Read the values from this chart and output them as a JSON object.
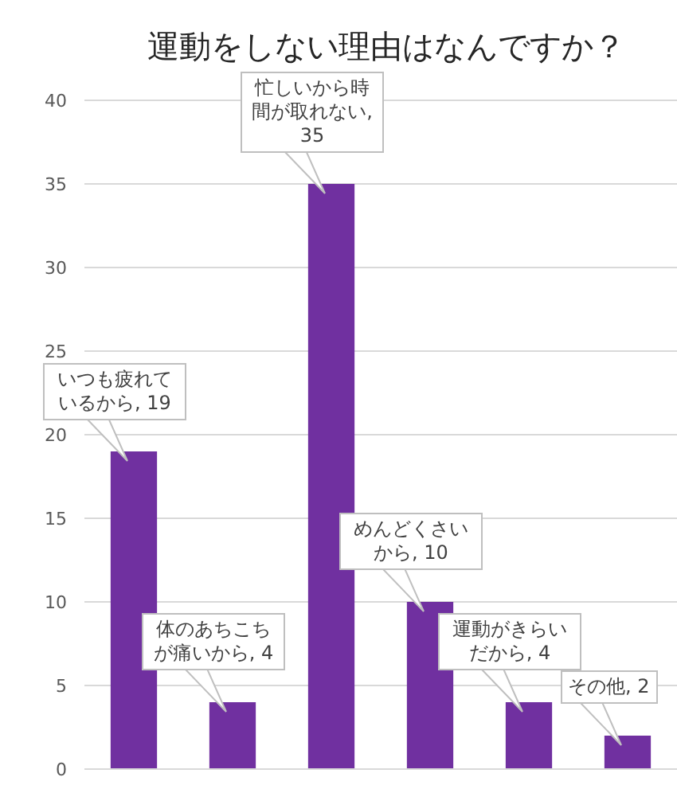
{
  "chart_data": {
    "type": "bar",
    "title": "運動をしない理由はなんですか？",
    "categories": [
      null,
      null,
      null,
      null,
      null,
      null
    ],
    "values": [
      19,
      4,
      35,
      10,
      4,
      2
    ],
    "color": "#7030a0",
    "value_labels": [
      "いつも疲れているから, 19",
      "体のあちこちが痛いから, 4",
      "忙しいから時間が取れない, 35",
      "めんどくさいから, 10",
      "運動がきらいだから, 4",
      "その他, 2"
    ],
    "ylim": [
      0,
      40
    ],
    "yticks": [
      0,
      5,
      10,
      15,
      20,
      25,
      30,
      35,
      40
    ],
    "grid": "y",
    "tick_labels": "y"
  }
}
